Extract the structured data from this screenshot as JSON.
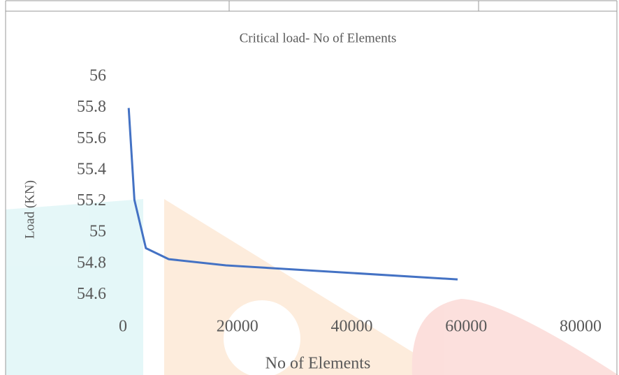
{
  "chart_data": {
    "type": "line",
    "title": "Critical load- No of Elements",
    "x_label": "No of Elements",
    "y_label": "Load (KN)",
    "x": [
      1000,
      2000,
      4000,
      8000,
      18000,
      58500
    ],
    "values": [
      55.8,
      55.21,
      54.9,
      54.83,
      54.79,
      54.7
    ],
    "color": "#4472c4",
    "xlim": [
      0,
      80000
    ],
    "xticks": [
      0,
      20000,
      40000,
      60000,
      80000
    ],
    "ylim": [
      54.4,
      56
    ],
    "yticks": [
      54.6,
      54.8,
      55,
      55.2,
      55.4,
      55.6,
      55.8,
      56
    ],
    "grid": false
  }
}
